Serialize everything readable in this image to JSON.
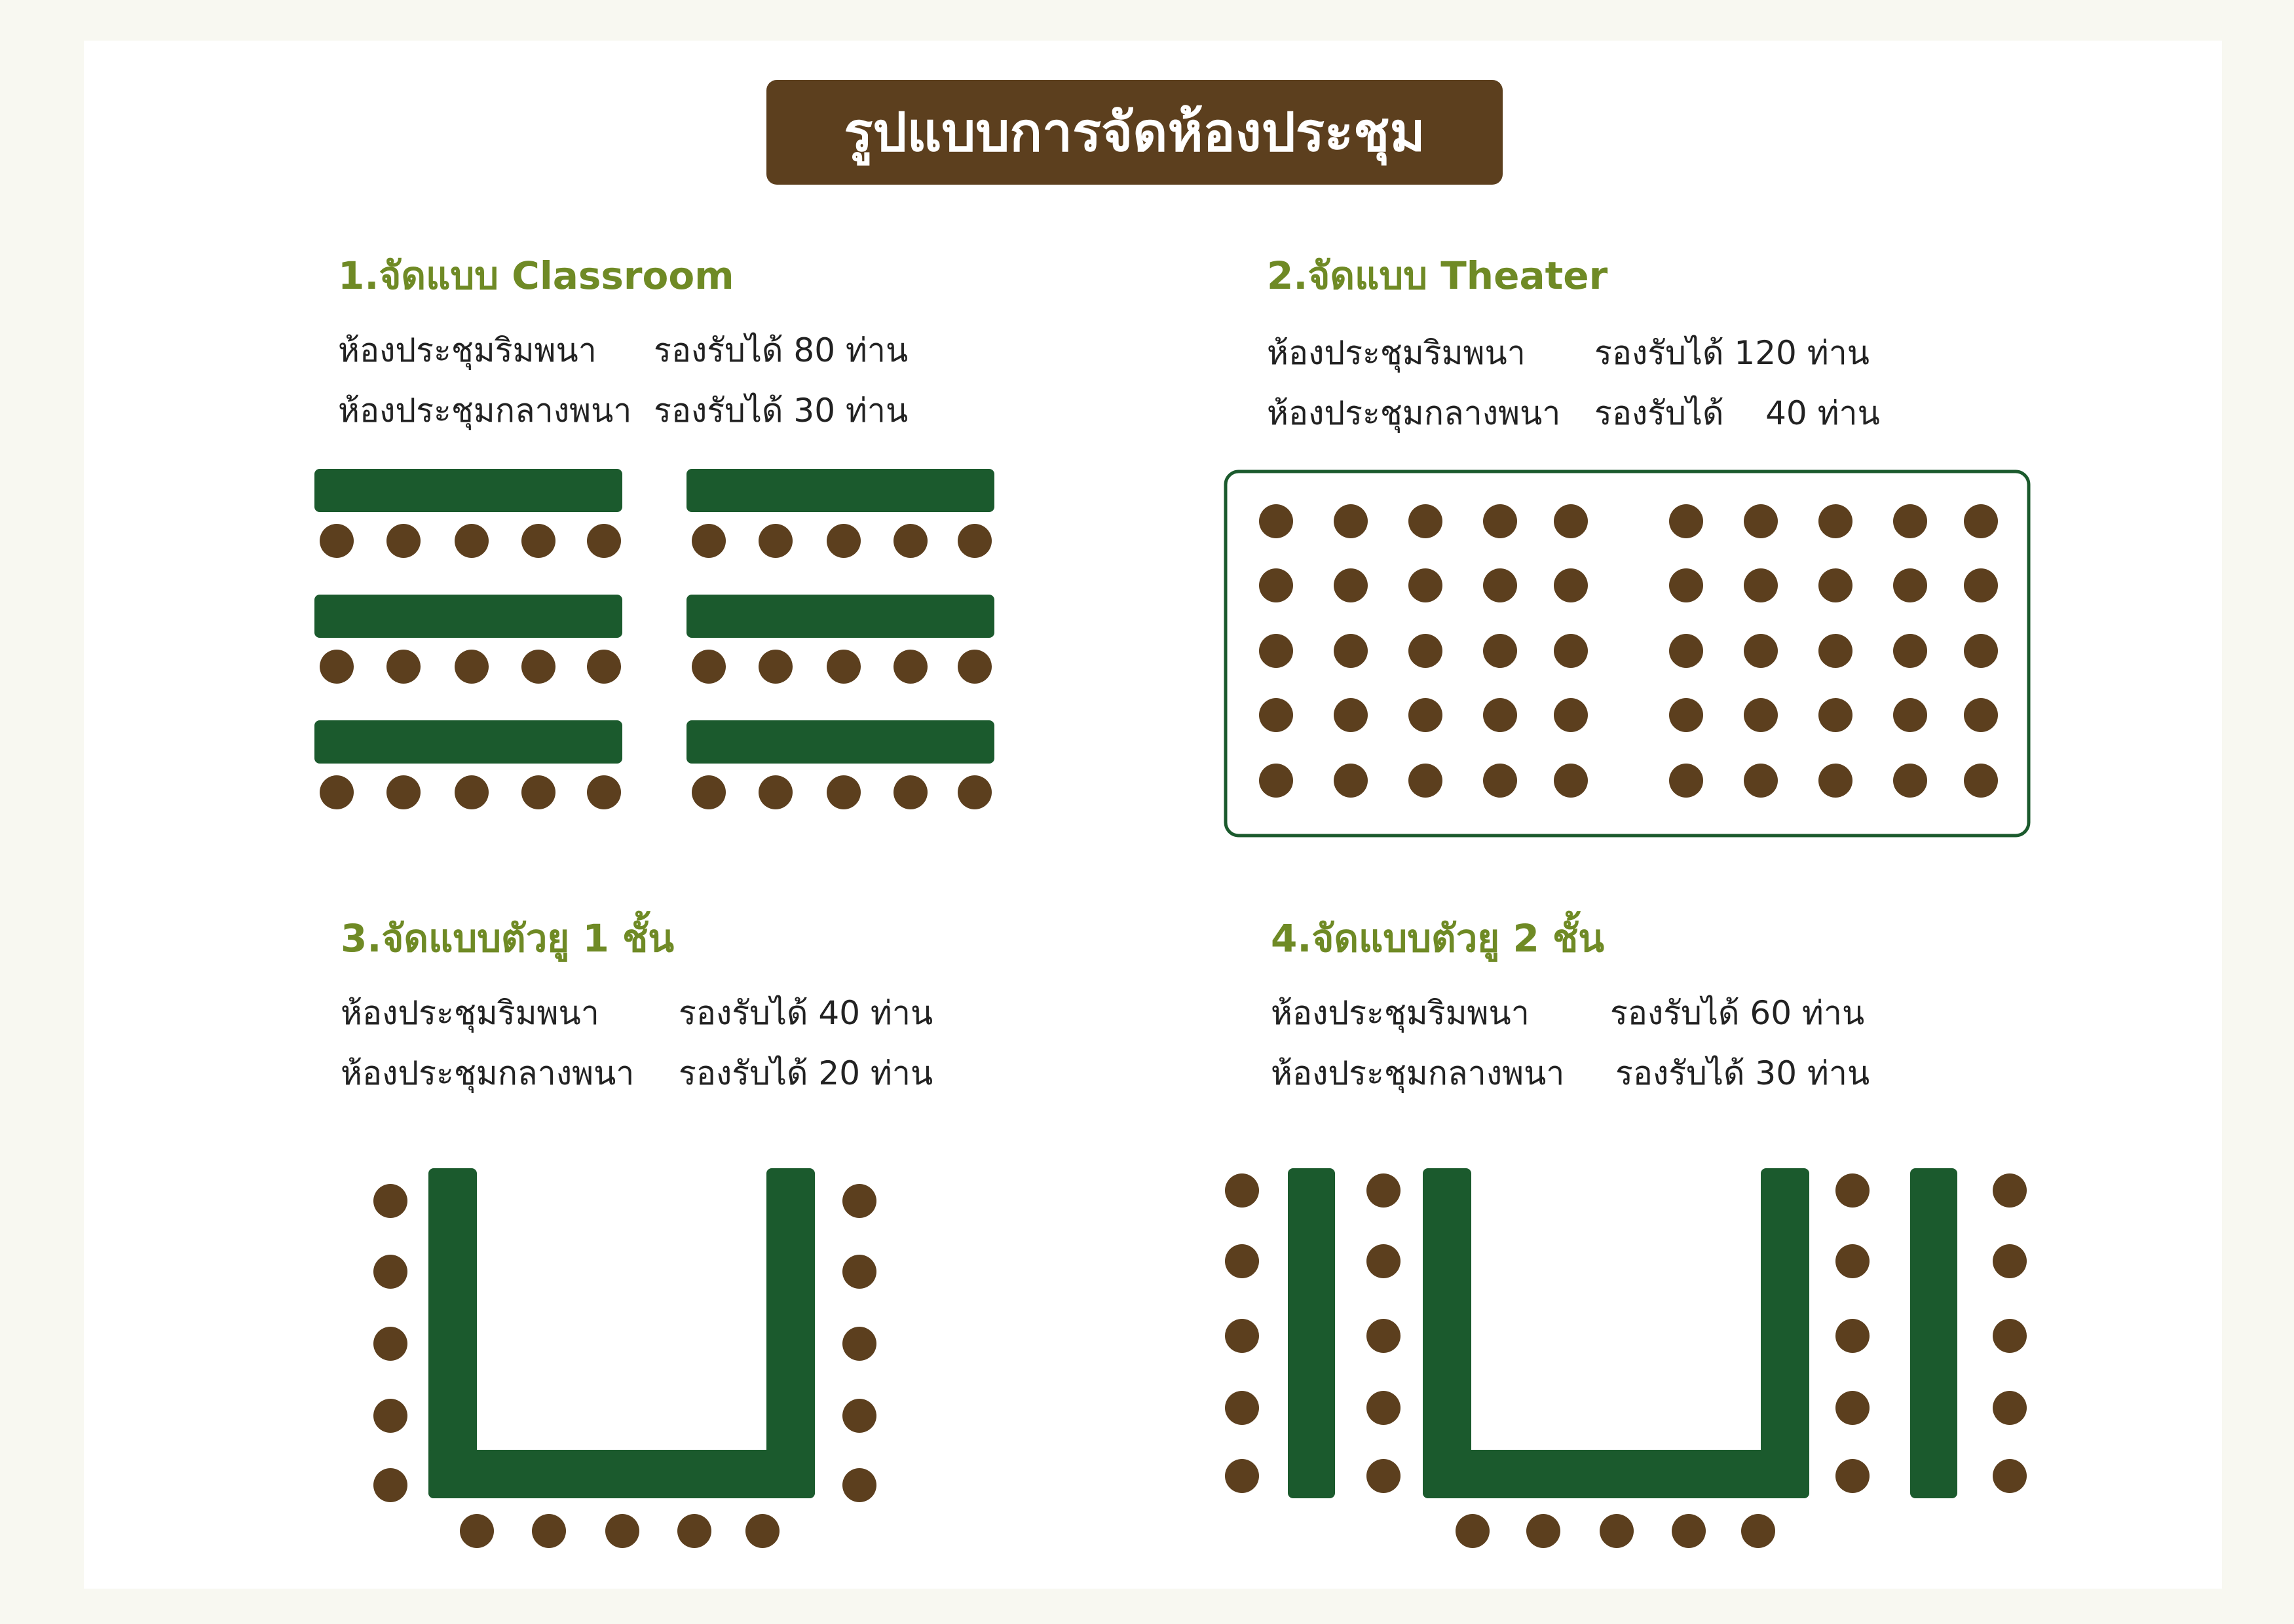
{
  "title": "รูปแบบการจัดห้องประชุม",
  "colors": {
    "title_bg": "#5c3f1e",
    "heading_text": "#6f8a25",
    "table": "#1b5a2d",
    "seat": "#5c3f1e",
    "room_outline": "#1b5a2d"
  },
  "layouts": [
    {
      "heading": "1.จัดแบบ Classroom",
      "rooms": [
        {
          "name": "ห้องประชุมริมพนา",
          "capacity": "รองรับได้ 80 ท่าน"
        },
        {
          "name": "ห้องประชุมกลางพนา",
          "capacity": "รองรับได้ 30 ท่าน"
        }
      ]
    },
    {
      "heading": "2.จัดแบบ Theater",
      "rooms": [
        {
          "name": "ห้องประชุมริมพนา",
          "capacity": "รองรับได้ 120 ท่าน"
        },
        {
          "name": "ห้องประชุมกลางพนา",
          "capacity": "รองรับได้    40 ท่าน"
        }
      ]
    },
    {
      "heading": "3.จัดแบบตัวยู 1 ชั้น",
      "rooms": [
        {
          "name": "ห้องประชุมริมพนา",
          "capacity": "รองรับได้ 40 ท่าน"
        },
        {
          "name": "ห้องประชุมกลางพนา",
          "capacity": "รองรับได้ 20 ท่าน"
        }
      ]
    },
    {
      "heading": "4.จัดแบบตัวยู 2 ชั้น",
      "rooms": [
        {
          "name": "ห้องประชุมริมพนา",
          "capacity": "รองรับได้ 60 ท่าน"
        },
        {
          "name": "ห้องประชุมกลางพนา",
          "capacity": "รองรับได้ 30 ท่าน"
        }
      ]
    }
  ]
}
